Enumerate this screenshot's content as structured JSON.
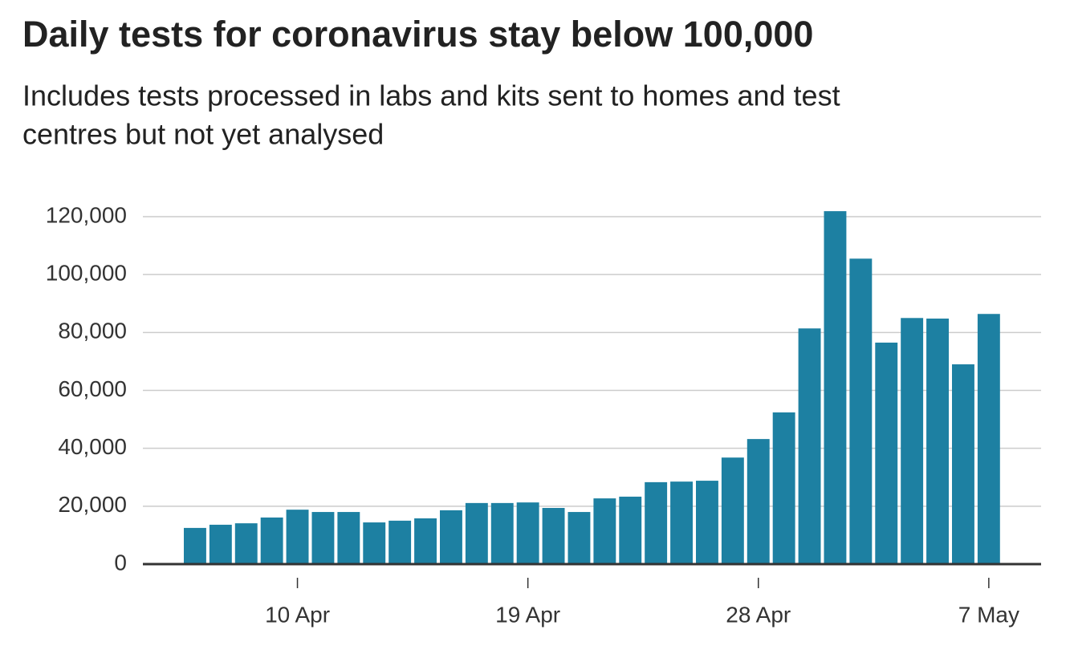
{
  "chart_data": {
    "type": "bar",
    "title": "Daily tests for coronavirus stay below 100,000",
    "subtitle": [
      "Includes tests processed in labs and kits sent to homes and test",
      "centres but not yet analysed"
    ],
    "categories": [
      null,
      null,
      null,
      null,
      "10 Apr",
      null,
      null,
      null,
      null,
      null,
      null,
      null,
      null,
      "19 Apr",
      null,
      null,
      null,
      null,
      null,
      null,
      null,
      null,
      "28 Apr",
      null,
      null,
      null,
      null,
      null,
      null,
      null,
      null,
      "7 May"
    ],
    "values": [
      12500,
      13600,
      14100,
      16100,
      18800,
      18000,
      18000,
      14400,
      15000,
      15800,
      18600,
      21100,
      21100,
      21300,
      19400,
      18000,
      22700,
      23300,
      28300,
      28500,
      28800,
      36800,
      43200,
      52400,
      81400,
      121900,
      105500,
      76500,
      85000,
      84800,
      69000,
      86400
    ],
    "color": "#1d80a2",
    "ylim": [
      0,
      120000
    ],
    "yticks": [
      0,
      {
        "value": 20000,
        "label": "20,000"
      },
      {
        "value": 40000,
        "label": "40,000"
      },
      {
        "value": 60000,
        "label": "60,000"
      },
      {
        "value": 80000,
        "label": "80,000"
      },
      {
        "value": 100000,
        "label": "100,000"
      },
      {
        "value": 120000,
        "label": "120,000"
      }
    ],
    "grid": true
  }
}
